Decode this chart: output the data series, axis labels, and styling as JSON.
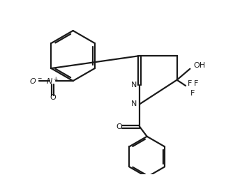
{
  "bg_color": "#ffffff",
  "line_color": "#1a1a1a",
  "line_width": 1.6,
  "fig_width": 3.34,
  "fig_height": 2.64,
  "dpi": 100,
  "xlim": [
    -2.6,
    2.2
  ],
  "ylim": [
    -1.6,
    1.8
  ]
}
